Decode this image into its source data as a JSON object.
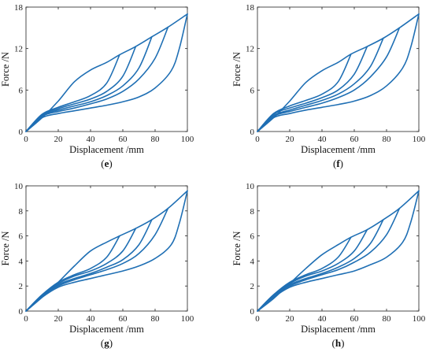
{
  "chart_data": [
    {
      "type": "line",
      "panel_label": "e",
      "xlabel": "Displacement /mm",
      "ylabel": "Force /N",
      "xlim": [
        0,
        100
      ],
      "ylim": [
        0,
        18
      ],
      "xticks": [
        0,
        20,
        40,
        60,
        80,
        100
      ],
      "yticks": [
        0,
        6,
        12,
        18
      ],
      "grid": false,
      "color": "#1f6fb4",
      "loading_curve": [
        [
          0,
          0
        ],
        [
          10,
          2.0
        ],
        [
          20,
          4.4
        ],
        [
          30,
          7.2
        ],
        [
          40,
          8.9
        ],
        [
          50,
          10.0
        ],
        [
          58,
          11.1
        ],
        [
          68,
          12.3
        ],
        [
          78,
          13.7
        ],
        [
          88,
          15.1
        ],
        [
          100,
          17.0
        ]
      ],
      "unloading_curves": [
        [
          [
            58,
            11.1
          ],
          [
            50,
            7.0
          ],
          [
            40,
            5.2
          ],
          [
            30,
            4.3
          ],
          [
            20,
            3.5
          ],
          [
            10,
            2.5
          ],
          [
            0,
            0
          ]
        ],
        [
          [
            68,
            12.3
          ],
          [
            60,
            8.0
          ],
          [
            50,
            5.8
          ],
          [
            40,
            4.7
          ],
          [
            30,
            4.0
          ],
          [
            20,
            3.3
          ],
          [
            10,
            2.4
          ],
          [
            0,
            0
          ]
        ],
        [
          [
            78,
            13.7
          ],
          [
            70,
            9.2
          ],
          [
            60,
            6.6
          ],
          [
            50,
            5.2
          ],
          [
            40,
            4.3
          ],
          [
            30,
            3.7
          ],
          [
            20,
            3.1
          ],
          [
            10,
            2.3
          ],
          [
            0,
            0
          ]
        ],
        [
          [
            88,
            15.1
          ],
          [
            80,
            10.6
          ],
          [
            70,
            7.6
          ],
          [
            60,
            5.8
          ],
          [
            50,
            4.7
          ],
          [
            40,
            4.0
          ],
          [
            30,
            3.4
          ],
          [
            20,
            2.9
          ],
          [
            10,
            2.2
          ],
          [
            0,
            0
          ]
        ],
        [
          [
            100,
            17.0
          ],
          [
            95,
            12.0
          ],
          [
            90,
            8.8
          ],
          [
            80,
            6.3
          ],
          [
            70,
            5.0
          ],
          [
            60,
            4.3
          ],
          [
            50,
            3.8
          ],
          [
            40,
            3.4
          ],
          [
            30,
            3.0
          ],
          [
            20,
            2.6
          ],
          [
            10,
            2.0
          ],
          [
            0,
            0
          ]
        ]
      ]
    },
    {
      "type": "line",
      "panel_label": "f",
      "xlabel": "Displacement /mm",
      "ylabel": "Force /N",
      "xlim": [
        0,
        100
      ],
      "ylim": [
        0,
        18
      ],
      "xticks": [
        0,
        20,
        40,
        60,
        80,
        100
      ],
      "yticks": [
        0,
        6,
        12,
        18
      ],
      "grid": false,
      "color": "#1f6fb4",
      "loading_curve": [
        [
          0,
          0
        ],
        [
          10,
          2.0
        ],
        [
          20,
          4.4
        ],
        [
          30,
          7.1
        ],
        [
          40,
          8.8
        ],
        [
          50,
          10.0
        ],
        [
          58,
          11.2
        ],
        [
          68,
          12.3
        ],
        [
          78,
          13.5
        ],
        [
          88,
          15.0
        ],
        [
          100,
          17.0
        ]
      ],
      "unloading_curves": [
        [
          [
            58,
            11.2
          ],
          [
            50,
            7.2
          ],
          [
            40,
            5.4
          ],
          [
            30,
            4.5
          ],
          [
            20,
            3.7
          ],
          [
            10,
            2.6
          ],
          [
            0,
            0
          ]
        ],
        [
          [
            68,
            12.3
          ],
          [
            60,
            8.3
          ],
          [
            50,
            6.0
          ],
          [
            40,
            4.9
          ],
          [
            30,
            4.1
          ],
          [
            20,
            3.4
          ],
          [
            10,
            2.5
          ],
          [
            0,
            0
          ]
        ],
        [
          [
            78,
            13.5
          ],
          [
            70,
            9.4
          ],
          [
            60,
            6.9
          ],
          [
            50,
            5.4
          ],
          [
            40,
            4.5
          ],
          [
            30,
            3.8
          ],
          [
            20,
            3.1
          ],
          [
            10,
            2.3
          ],
          [
            0,
            0
          ]
        ],
        [
          [
            88,
            15.0
          ],
          [
            80,
            10.8
          ],
          [
            70,
            7.9
          ],
          [
            60,
            6.0
          ],
          [
            50,
            4.9
          ],
          [
            40,
            4.1
          ],
          [
            30,
            3.5
          ],
          [
            20,
            2.9
          ],
          [
            10,
            2.2
          ],
          [
            0,
            0
          ]
        ],
        [
          [
            100,
            17.0
          ],
          [
            95,
            12.2
          ],
          [
            90,
            9.2
          ],
          [
            80,
            6.6
          ],
          [
            70,
            5.2
          ],
          [
            60,
            4.4
          ],
          [
            50,
            3.9
          ],
          [
            40,
            3.5
          ],
          [
            30,
            3.1
          ],
          [
            20,
            2.6
          ],
          [
            10,
            2.0
          ],
          [
            0,
            0
          ]
        ]
      ]
    },
    {
      "type": "line",
      "panel_label": "g",
      "xlabel": "Displacement /mm",
      "ylabel": "Force /N",
      "xlim": [
        0,
        100
      ],
      "ylim": [
        0,
        10
      ],
      "xticks": [
        0,
        20,
        40,
        60,
        80,
        100
      ],
      "yticks": [
        0,
        2,
        4,
        6,
        8,
        10
      ],
      "grid": false,
      "color": "#1f6fb4",
      "loading_curve": [
        [
          0,
          0
        ],
        [
          10,
          1.1
        ],
        [
          20,
          2.3
        ],
        [
          30,
          3.6
        ],
        [
          40,
          4.8
        ],
        [
          50,
          5.5
        ],
        [
          58,
          6.0
        ],
        [
          68,
          6.6
        ],
        [
          78,
          7.3
        ],
        [
          88,
          8.2
        ],
        [
          100,
          9.6
        ]
      ],
      "unloading_curves": [
        [
          [
            58,
            6.0
          ],
          [
            50,
            4.3
          ],
          [
            40,
            3.4
          ],
          [
            30,
            2.9
          ],
          [
            20,
            2.3
          ],
          [
            10,
            1.3
          ],
          [
            0,
            0
          ]
        ],
        [
          [
            68,
            6.6
          ],
          [
            60,
            4.8
          ],
          [
            50,
            3.8
          ],
          [
            40,
            3.2
          ],
          [
            30,
            2.8
          ],
          [
            20,
            2.2
          ],
          [
            10,
            1.3
          ],
          [
            0,
            0
          ]
        ],
        [
          [
            78,
            7.3
          ],
          [
            70,
            5.3
          ],
          [
            60,
            4.1
          ],
          [
            50,
            3.5
          ],
          [
            40,
            3.0
          ],
          [
            30,
            2.6
          ],
          [
            20,
            2.1
          ],
          [
            10,
            1.2
          ],
          [
            0,
            0
          ]
        ],
        [
          [
            88,
            8.2
          ],
          [
            80,
            6.1
          ],
          [
            70,
            4.6
          ],
          [
            60,
            3.8
          ],
          [
            50,
            3.3
          ],
          [
            40,
            2.9
          ],
          [
            30,
            2.5
          ],
          [
            20,
            2.0
          ],
          [
            10,
            1.2
          ],
          [
            0,
            0
          ]
        ],
        [
          [
            100,
            9.6
          ],
          [
            95,
            7.0
          ],
          [
            90,
            5.3
          ],
          [
            80,
            4.2
          ],
          [
            70,
            3.6
          ],
          [
            60,
            3.2
          ],
          [
            50,
            2.9
          ],
          [
            40,
            2.6
          ],
          [
            30,
            2.3
          ],
          [
            20,
            1.9
          ],
          [
            10,
            1.1
          ],
          [
            0,
            0
          ]
        ]
      ]
    },
    {
      "type": "line",
      "panel_label": "h",
      "xlabel": "Displacement /mm",
      "ylabel": "Force /N",
      "xlim": [
        0,
        100
      ],
      "ylim": [
        0,
        10
      ],
      "xticks": [
        0,
        20,
        40,
        60,
        80,
        100
      ],
      "yticks": [
        0,
        2,
        4,
        6,
        8,
        10
      ],
      "grid": false,
      "color": "#1f6fb4",
      "loading_curve": [
        [
          0,
          0
        ],
        [
          10,
          1.0
        ],
        [
          20,
          2.2
        ],
        [
          30,
          3.4
        ],
        [
          40,
          4.5
        ],
        [
          50,
          5.3
        ],
        [
          58,
          5.9
        ],
        [
          68,
          6.5
        ],
        [
          78,
          7.3
        ],
        [
          88,
          8.2
        ],
        [
          100,
          9.6
        ]
      ],
      "unloading_curves": [
        [
          [
            58,
            5.9
          ],
          [
            50,
            4.3
          ],
          [
            40,
            3.4
          ],
          [
            30,
            2.9
          ],
          [
            20,
            2.3
          ],
          [
            10,
            1.3
          ],
          [
            0,
            0
          ]
        ],
        [
          [
            68,
            6.5
          ],
          [
            60,
            4.8
          ],
          [
            50,
            3.8
          ],
          [
            40,
            3.2
          ],
          [
            30,
            2.8
          ],
          [
            20,
            2.2
          ],
          [
            10,
            1.3
          ],
          [
            0,
            0
          ]
        ],
        [
          [
            78,
            7.3
          ],
          [
            70,
            5.4
          ],
          [
            60,
            4.2
          ],
          [
            50,
            3.5
          ],
          [
            40,
            3.0
          ],
          [
            30,
            2.6
          ],
          [
            20,
            2.1
          ],
          [
            10,
            1.2
          ],
          [
            0,
            0
          ]
        ],
        [
          [
            88,
            8.2
          ],
          [
            80,
            6.1
          ],
          [
            70,
            4.7
          ],
          [
            60,
            3.9
          ],
          [
            50,
            3.3
          ],
          [
            40,
            2.9
          ],
          [
            30,
            2.5
          ],
          [
            20,
            2.0
          ],
          [
            10,
            1.2
          ],
          [
            0,
            0
          ]
        ],
        [
          [
            100,
            9.6
          ],
          [
            95,
            7.1
          ],
          [
            90,
            5.5
          ],
          [
            80,
            4.3
          ],
          [
            70,
            3.7
          ],
          [
            60,
            3.2
          ],
          [
            50,
            2.9
          ],
          [
            40,
            2.6
          ],
          [
            30,
            2.3
          ],
          [
            20,
            1.9
          ],
          [
            10,
            1.1
          ],
          [
            0,
            0
          ]
        ]
      ]
    }
  ]
}
